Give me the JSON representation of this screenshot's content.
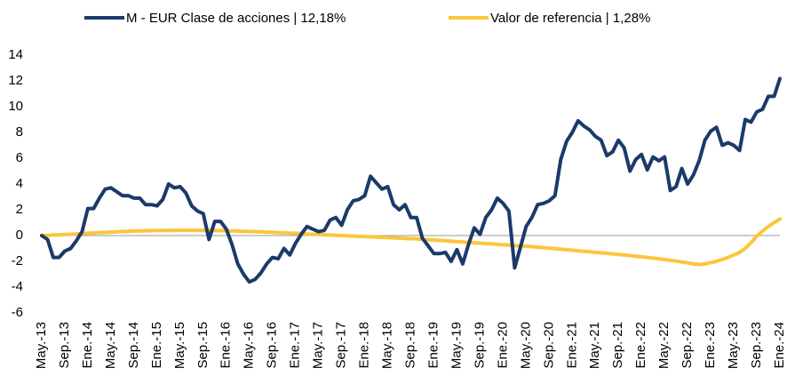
{
  "chart_data": {
    "type": "line",
    "categories": [
      "May.-13",
      null,
      null,
      null,
      "Sep.-13",
      null,
      null,
      null,
      "Ene.-14",
      null,
      null,
      null,
      "May.-14",
      null,
      null,
      null,
      "Sep.-14",
      null,
      null,
      null,
      "Ene.-15",
      null,
      null,
      null,
      "May.-15",
      null,
      null,
      null,
      "Sep.-15",
      null,
      null,
      null,
      "Ene.-16",
      null,
      null,
      null,
      "May.-16",
      null,
      null,
      null,
      "Sep.-16",
      null,
      null,
      null,
      "Ene.-17",
      null,
      null,
      null,
      "May.-17",
      null,
      null,
      null,
      "Sep.-17",
      null,
      null,
      null,
      "Ene.-18",
      null,
      null,
      null,
      "May.-18",
      null,
      null,
      null,
      "Sep.-18",
      null,
      null,
      null,
      "Ene.-19",
      null,
      null,
      null,
      "May.-19",
      null,
      null,
      null,
      "Sep.-19",
      null,
      null,
      null,
      "Ene.-20",
      null,
      null,
      null,
      "May.-20",
      null,
      null,
      null,
      "Sep.-20",
      null,
      null,
      null,
      "Ene.-21",
      null,
      null,
      null,
      "May.-21",
      null,
      null,
      null,
      "Sep.-21",
      null,
      null,
      null,
      "Ene.-22",
      null,
      null,
      null,
      "May.-22",
      null,
      null,
      null,
      "Sep.-22",
      null,
      null,
      null,
      "Ene.-23",
      null,
      null,
      null,
      "May.-23",
      null,
      null,
      null,
      "Sep.-23",
      null,
      null,
      null,
      "Ene.-24"
    ],
    "series": [
      {
        "name": "M - EUR Clase de acciones | 12,18%",
        "color": "#1b3a6b",
        "values": [
          0,
          -0.3,
          -1.7,
          -1.7,
          -1.2,
          -1.0,
          -0.4,
          0.3,
          2.1,
          2.1,
          2.9,
          3.6,
          3.7,
          3.4,
          3.1,
          3.1,
          2.9,
          2.9,
          2.4,
          2.4,
          2.3,
          2.8,
          4.0,
          3.7,
          3.8,
          3.3,
          2.3,
          1.9,
          1.7,
          -0.3,
          1.1,
          1.1,
          0.5,
          -0.7,
          -2.2,
          -3.0,
          -3.6,
          -3.4,
          -2.9,
          -2.2,
          -1.7,
          -1.8,
          -1.0,
          -1.5,
          -0.6,
          0.1,
          0.7,
          0.5,
          0.3,
          0.4,
          1.2,
          1.4,
          0.8,
          2.0,
          2.7,
          2.8,
          3.1,
          4.6,
          4.1,
          3.6,
          3.8,
          2.4,
          2.0,
          2.4,
          1.4,
          1.4,
          -0.2,
          -0.8,
          -1.4,
          -1.4,
          -1.3,
          -2.0,
          -1.1,
          -2.2,
          -0.7,
          0.6,
          0.1,
          1.4,
          2.0,
          2.9,
          2.5,
          1.9,
          -2.5,
          -0.9,
          0.7,
          1.4,
          2.4,
          2.5,
          2.7,
          3.1,
          5.9,
          7.3,
          8.0,
          8.9,
          8.5,
          8.2,
          7.7,
          7.4,
          6.2,
          6.5,
          7.4,
          6.8,
          5.0,
          5.9,
          6.3,
          5.1,
          6.1,
          5.8,
          6.1,
          3.5,
          3.8,
          5.2,
          4.0,
          4.7,
          5.8,
          7.4,
          8.1,
          8.4,
          7.0,
          7.2,
          7.0,
          6.6,
          9.0,
          8.8,
          9.6,
          9.8,
          10.8,
          10.8,
          12.18
        ]
      },
      {
        "name": "Valor de referencia | 1,28%",
        "color": "#fcc53a",
        "values": [
          0,
          0.02,
          0.04,
          0.06,
          0.08,
          0.1,
          0.12,
          0.15,
          0.18,
          0.2,
          0.22,
          0.24,
          0.27,
          0.29,
          0.31,
          0.33,
          0.35,
          0.36,
          0.37,
          0.38,
          0.39,
          0.4,
          0.4,
          0.41,
          0.41,
          0.41,
          0.41,
          0.41,
          0.4,
          0.4,
          0.39,
          0.38,
          0.37,
          0.36,
          0.35,
          0.33,
          0.32,
          0.3,
          0.29,
          0.27,
          0.25,
          0.23,
          0.21,
          0.19,
          0.17,
          0.15,
          0.12,
          0.1,
          0.08,
          0.06,
          0.04,
          0.02,
          0,
          -0.02,
          -0.04,
          -0.06,
          -0.08,
          -0.1,
          -0.12,
          -0.14,
          -0.16,
          -0.18,
          -0.2,
          -0.22,
          -0.24,
          -0.26,
          -0.29,
          -0.32,
          -0.35,
          -0.38,
          -0.41,
          -0.44,
          -0.47,
          -0.5,
          -0.53,
          -0.56,
          -0.59,
          -0.62,
          -0.65,
          -0.68,
          -0.71,
          -0.74,
          -0.77,
          -0.8,
          -0.83,
          -0.86,
          -0.9,
          -0.94,
          -0.98,
          -1.02,
          -1.06,
          -1.1,
          -1.14,
          -1.18,
          -1.22,
          -1.26,
          -1.3,
          -1.34,
          -1.38,
          -1.42,
          -1.46,
          -1.5,
          -1.55,
          -1.6,
          -1.65,
          -1.7,
          -1.75,
          -1.8,
          -1.86,
          -1.92,
          -1.98,
          -2.05,
          -2.12,
          -2.2,
          -2.25,
          -2.2,
          -2.1,
          -2.0,
          -1.85,
          -1.7,
          -1.5,
          -1.3,
          -1.0,
          -0.55,
          -0.05,
          0.35,
          0.7,
          1.0,
          1.28
        ]
      }
    ],
    "ylim": [
      -6,
      14
    ],
    "yticks": [
      -6,
      -4,
      -2,
      0,
      2,
      4,
      6,
      8,
      10,
      12,
      14
    ],
    "grid": false
  }
}
